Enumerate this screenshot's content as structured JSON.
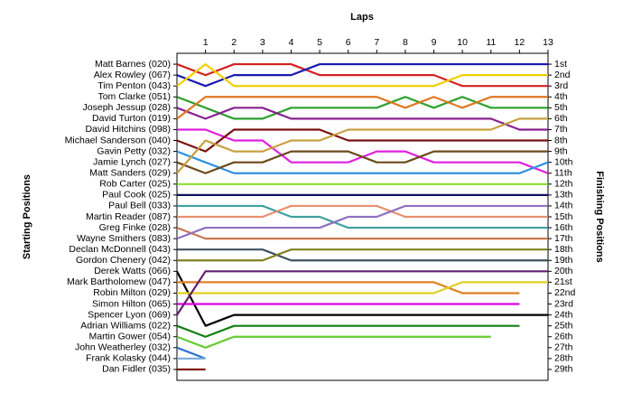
{
  "chart_data": {
    "type": "line",
    "title": "Laps",
    "y_label": "Starting Positions",
    "y2_label": "Finishing Positions",
    "x": [
      0,
      1,
      2,
      3,
      4,
      5,
      6,
      7,
      8,
      9,
      10,
      11,
      12,
      13
    ],
    "xlim": [
      0,
      13
    ],
    "xticks": [
      1,
      2,
      3,
      4,
      5,
      6,
      7,
      8,
      9,
      10,
      11,
      12,
      13
    ],
    "ylim": [
      30,
      0
    ],
    "y2lim": [
      30,
      0
    ],
    "yticks": [
      {
        "value": 1,
        "label": "Matt Barnes (020)"
      },
      {
        "value": 2,
        "label": "Alex Rowley (067)"
      },
      {
        "value": 3,
        "label": "Tim Penton (043)"
      },
      {
        "value": 4,
        "label": "Tom Clarke (051)"
      },
      {
        "value": 5,
        "label": "Joseph Jessup (028)"
      },
      {
        "value": 6,
        "label": "David Turton (019)"
      },
      {
        "value": 7,
        "label": "David Hitchins (098)"
      },
      {
        "value": 8,
        "label": "Michael Sanderson (040)"
      },
      {
        "value": 9,
        "label": "Gavin Petty (032)"
      },
      {
        "value": 10,
        "label": "Jamie Lynch (027)"
      },
      {
        "value": 11,
        "label": "Matt Sanders (029)"
      },
      {
        "value": 12,
        "label": "Rob Carter (025)"
      },
      {
        "value": 13,
        "label": "Paul Cook (025)"
      },
      {
        "value": 14,
        "label": "Paul Bell (033)"
      },
      {
        "value": 15,
        "label": "Martin Reader (087)"
      },
      {
        "value": 16,
        "label": "Greg Finke (028)"
      },
      {
        "value": 17,
        "label": "Wayne Smithers (083)"
      },
      {
        "value": 18,
        "label": "Declan McDonnell (043)"
      },
      {
        "value": 19,
        "label": "Gordon Chenery (042)"
      },
      {
        "value": 20,
        "label": "Derek Watts (066)"
      },
      {
        "value": 21,
        "label": "Mark Bartholomew (047)"
      },
      {
        "value": 22,
        "label": "Robin Milton (029)"
      },
      {
        "value": 23,
        "label": "Simon Hilton (065)"
      },
      {
        "value": 24,
        "label": "Spencer Lyon (069)"
      },
      {
        "value": 25,
        "label": "Adrian Williams (022)"
      },
      {
        "value": 26,
        "label": "Martin Gower (054)"
      },
      {
        "value": 27,
        "label": "John Weatherley (032)"
      },
      {
        "value": 28,
        "label": "Frank Kolasky (044)"
      },
      {
        "value": 29,
        "label": "Dan Fidler (035)"
      }
    ],
    "y2ticks": [
      {
        "value": 1,
        "label": "1st"
      },
      {
        "value": 2,
        "label": "2nd"
      },
      {
        "value": 3,
        "label": "3rd"
      },
      {
        "value": 4,
        "label": "4th"
      },
      {
        "value": 5,
        "label": "5th"
      },
      {
        "value": 6,
        "label": "6th"
      },
      {
        "value": 7,
        "label": "7th"
      },
      {
        "value": 8,
        "label": "8th"
      },
      {
        "value": 9,
        "label": "9th"
      },
      {
        "value": 10,
        "label": "10th"
      },
      {
        "value": 11,
        "label": "11th"
      },
      {
        "value": 12,
        "label": "12th"
      },
      {
        "value": 13,
        "label": "13th"
      },
      {
        "value": 14,
        "label": "14th"
      },
      {
        "value": 15,
        "label": "15th"
      },
      {
        "value": 16,
        "label": "16th"
      },
      {
        "value": 17,
        "label": "17th"
      },
      {
        "value": 18,
        "label": "18th"
      },
      {
        "value": 19,
        "label": "19th"
      },
      {
        "value": 20,
        "label": "20th"
      },
      {
        "value": 21,
        "label": "21st"
      },
      {
        "value": 22,
        "label": "22nd"
      },
      {
        "value": 23,
        "label": "23rd"
      },
      {
        "value": 24,
        "label": "24th"
      },
      {
        "value": 25,
        "label": "25th"
      },
      {
        "value": 26,
        "label": "26th"
      },
      {
        "value": 27,
        "label": "27th"
      },
      {
        "value": 28,
        "label": "28th"
      },
      {
        "value": 29,
        "label": "29th"
      }
    ],
    "series": [
      {
        "color": "#d42020",
        "values": [
          1,
          2,
          1,
          1,
          1,
          2,
          2,
          2,
          2,
          2,
          3,
          3,
          3,
          3
        ]
      },
      {
        "color": "#1a1ab0",
        "values": [
          2,
          3,
          2,
          2,
          2,
          1,
          1,
          1,
          1,
          1,
          1,
          1,
          1,
          1
        ]
      },
      {
        "color": "#f0d000",
        "values": [
          3,
          1,
          3,
          3,
          3,
          3,
          3,
          3,
          3,
          3,
          2,
          2,
          2,
          2
        ]
      },
      {
        "color": "#2ca02c",
        "values": [
          4,
          5,
          6,
          6,
          5,
          5,
          5,
          5,
          4,
          5,
          4,
          5,
          5,
          5
        ]
      },
      {
        "color": "#8a2090",
        "values": [
          5,
          6,
          5,
          5,
          6,
          6,
          6,
          6,
          6,
          6,
          6,
          6,
          7,
          7
        ]
      },
      {
        "color": "#e07820",
        "values": [
          6,
          4,
          4,
          4,
          4,
          4,
          4,
          4,
          5,
          4,
          5,
          4,
          4,
          4
        ]
      },
      {
        "color": "#e020e0",
        "values": [
          7,
          7,
          8,
          8,
          10,
          10,
          10,
          9,
          9,
          10,
          10,
          10,
          10,
          11
        ]
      },
      {
        "color": "#7a1010",
        "values": [
          8,
          9,
          7,
          7,
          7,
          7,
          8,
          8,
          8,
          8,
          8,
          8,
          8,
          8
        ]
      },
      {
        "color": "#3090e0",
        "values": [
          9,
          10,
          11,
          11,
          11,
          11,
          11,
          11,
          11,
          11,
          11,
          11,
          11,
          10
        ]
      },
      {
        "color": "#6b4a1a",
        "values": [
          10,
          11,
          10,
          10,
          9,
          9,
          9,
          10,
          10,
          9,
          9,
          9,
          9,
          9
        ]
      },
      {
        "color": "#c8a040",
        "values": [
          11,
          8,
          9,
          9,
          8,
          8,
          7,
          7,
          7,
          7,
          7,
          7,
          6,
          6
        ]
      },
      {
        "color": "#88e030",
        "values": [
          12,
          12,
          12,
          12,
          12,
          12,
          12,
          12,
          12,
          12,
          12,
          12,
          12,
          12
        ]
      },
      {
        "color": "#101060",
        "values": [
          13,
          13,
          13,
          13,
          13,
          13,
          13,
          13,
          13,
          13,
          13,
          13,
          13,
          13
        ]
      },
      {
        "color": "#40a0a0",
        "values": [
          14,
          14,
          14,
          14,
          15,
          15,
          16,
          16,
          16,
          16,
          16,
          16,
          16,
          16
        ]
      },
      {
        "color": "#e89070",
        "values": [
          15,
          15,
          15,
          15,
          14,
          14,
          14,
          14,
          15,
          15,
          15,
          15,
          15,
          15
        ]
      },
      {
        "color": "#c87850",
        "values": [
          16,
          17,
          17,
          17,
          17,
          17,
          17,
          17,
          17,
          17,
          17,
          17,
          17,
          17
        ]
      },
      {
        "color": "#9070c0",
        "values": [
          17,
          16,
          16,
          16,
          16,
          16,
          15,
          15,
          14,
          14,
          14,
          14,
          14,
          14
        ]
      },
      {
        "color": "#405060",
        "values": [
          18,
          18,
          18,
          18,
          19,
          19,
          19,
          19,
          19,
          19,
          19,
          19,
          19,
          19
        ]
      },
      {
        "color": "#808020",
        "values": [
          19,
          19,
          19,
          19,
          18,
          18,
          18,
          18,
          18,
          18,
          18,
          18,
          18,
          18
        ]
      },
      {
        "color": "#000000",
        "values": [
          20,
          25,
          24,
          24,
          24,
          24,
          24,
          24,
          24,
          24,
          24,
          24,
          24,
          24
        ]
      },
      {
        "color": "#e08020",
        "values": [
          21,
          21,
          21,
          21,
          21,
          21,
          21,
          21,
          21,
          21,
          22,
          22,
          22,
          null
        ]
      },
      {
        "color": "#e0d020",
        "values": [
          22,
          22,
          22,
          22,
          22,
          22,
          22,
          22,
          22,
          22,
          21,
          21,
          21,
          21
        ]
      },
      {
        "color": "#e000e0",
        "values": [
          23,
          23,
          23,
          23,
          23,
          23,
          23,
          23,
          23,
          23,
          23,
          23,
          23,
          null
        ]
      },
      {
        "color": "#602070",
        "values": [
          24,
          20,
          20,
          20,
          20,
          20,
          20,
          20,
          20,
          20,
          20,
          20,
          20,
          20
        ]
      },
      {
        "color": "#108010",
        "values": [
          25,
          26,
          25,
          25,
          25,
          25,
          25,
          25,
          25,
          25,
          25,
          25,
          25,
          null
        ]
      },
      {
        "color": "#66cc33",
        "values": [
          26,
          27,
          26,
          26,
          26,
          26,
          26,
          26,
          26,
          26,
          26,
          26,
          null,
          null
        ]
      },
      {
        "color": "#3070d0",
        "values": [
          27,
          28,
          null,
          null,
          null,
          null,
          null,
          null,
          null,
          null,
          null,
          null,
          null,
          null
        ]
      },
      {
        "color": "#80b0e0",
        "values": [
          28,
          28,
          null,
          null,
          null,
          null,
          null,
          null,
          null,
          null,
          null,
          null,
          null,
          null
        ]
      },
      {
        "color": "#800000",
        "values": [
          29,
          29,
          null,
          null,
          null,
          null,
          null,
          null,
          null,
          null,
          null,
          null,
          null,
          null
        ]
      }
    ]
  }
}
